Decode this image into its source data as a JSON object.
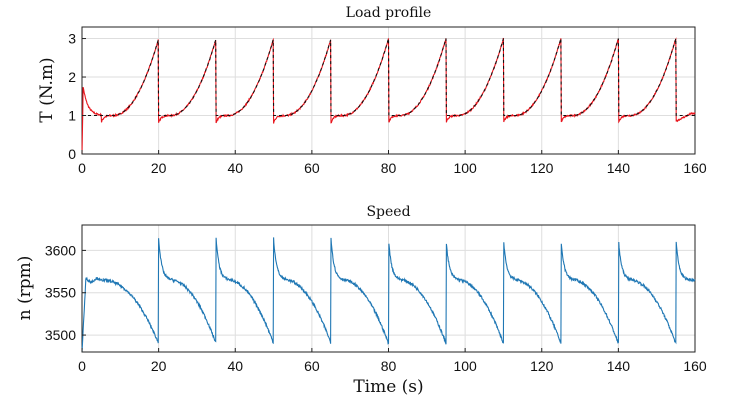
{
  "chart_data": [
    {
      "type": "line",
      "title": "Load profile",
      "xlabel": "",
      "ylabel": "T (N.m)",
      "xlim": [
        0,
        160
      ],
      "ylim": [
        0,
        3.3
      ],
      "xticks": [
        "0",
        "20",
        "40",
        "60",
        "80",
        "100",
        "120",
        "140",
        "160"
      ],
      "yticks": [
        "0",
        "1",
        "2",
        "3"
      ],
      "grid": true,
      "series": [
        {
          "color": "#e8141c",
          "style": "solid",
          "cycle_starts": [
            5,
            20,
            35,
            50,
            65,
            80,
            95,
            110,
            125,
            140,
            155
          ],
          "baseline": 1.0,
          "peak": 3.0,
          "initial_spike": 1.75,
          "end_value": 1.05
        },
        {
          "color": "#111111",
          "style": "dashed",
          "cycle_starts": [
            5,
            20,
            35,
            50,
            65,
            80,
            95,
            110,
            125,
            140,
            155
          ],
          "baseline": 1.0,
          "peak": 3.0
        }
      ]
    },
    {
      "type": "line",
      "title": "Speed",
      "xlabel": "Time (s)",
      "ylabel": "n (rpm)",
      "xlim": [
        0,
        160
      ],
      "ylim": [
        3480,
        3630
      ],
      "xticks": [
        "0",
        "20",
        "40",
        "60",
        "80",
        "100",
        "120",
        "140",
        "160"
      ],
      "yticks": [
        "3500",
        "3550",
        "3600"
      ],
      "grid": true,
      "series": [
        {
          "color": "#1f77b4",
          "style": "solid",
          "cycle_starts": [
            5,
            20,
            35,
            50,
            65,
            80,
            95,
            110,
            125,
            140,
            155
          ],
          "plateau": 3565,
          "peak": 3615,
          "trough": 3490,
          "start_value": 3480,
          "end_value": 3567
        }
      ]
    }
  ]
}
